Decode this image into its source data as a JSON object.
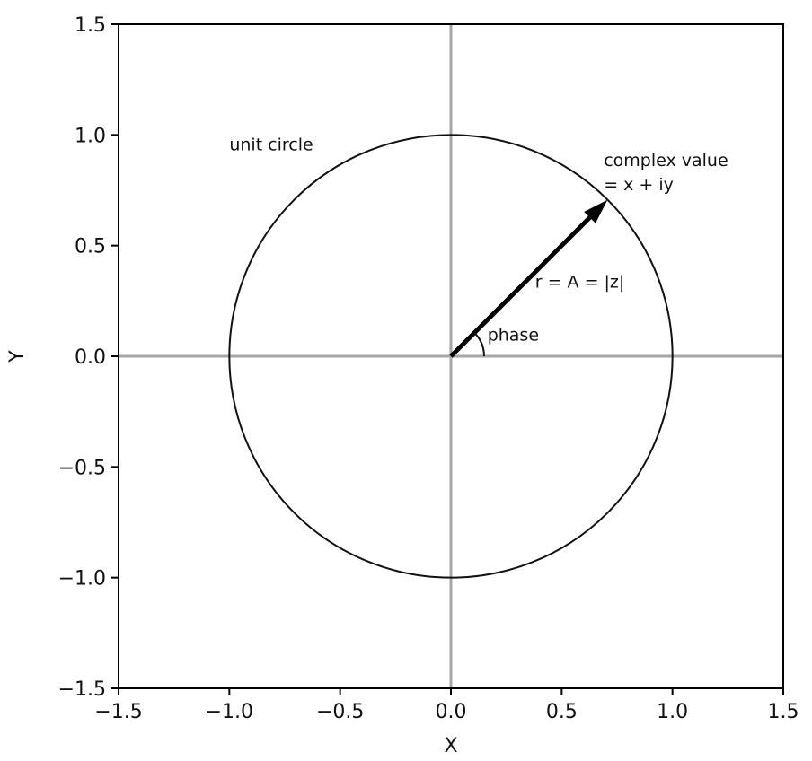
{
  "chart_data": {
    "type": "scatter",
    "title": "",
    "xlabel": "X",
    "ylabel": "Y",
    "xlim": [
      -1.5,
      1.5
    ],
    "ylim": [
      -1.5,
      1.5
    ],
    "xticks": [
      -1.5,
      -1.0,
      -0.5,
      0.0,
      0.5,
      1.0,
      1.5
    ],
    "yticks": [
      -1.5,
      -1.0,
      -0.5,
      0.0,
      0.5,
      1.0,
      1.5
    ],
    "xtick_labels": [
      "−1.5",
      "−1.0",
      "−0.5",
      "0.0",
      "0.5",
      "1.0",
      "1.5"
    ],
    "ytick_labels": [
      "−1.5",
      "−1.0",
      "−0.5",
      "0.0",
      "0.5",
      "1.0",
      "1.5"
    ],
    "grid": false,
    "zero_lines": {
      "x": 0,
      "y": 0,
      "color": "#a6a6a6"
    },
    "unit_circle": {
      "center": [
        0,
        0
      ],
      "radius": 1.0,
      "color": "#111111"
    },
    "vector": {
      "from": [
        0,
        0
      ],
      "to": [
        0.707,
        0.707
      ],
      "color": "#000000"
    },
    "phase_arc": {
      "radius": 0.15,
      "start_deg": 0,
      "end_deg": 45
    },
    "annotations": [
      {
        "id": "unit",
        "text": "unit circle",
        "x": -1.0,
        "y": 0.93
      },
      {
        "id": "cv1",
        "text": "complex value",
        "x": 0.69,
        "y": 0.86
      },
      {
        "id": "cv2",
        "text": "= x + iy",
        "x": 0.69,
        "y": 0.75
      },
      {
        "id": "r",
        "text": "r = A = |z|",
        "x": 0.38,
        "y": 0.31
      },
      {
        "id": "phase",
        "text": "phase",
        "x": 0.165,
        "y": 0.07
      }
    ]
  }
}
